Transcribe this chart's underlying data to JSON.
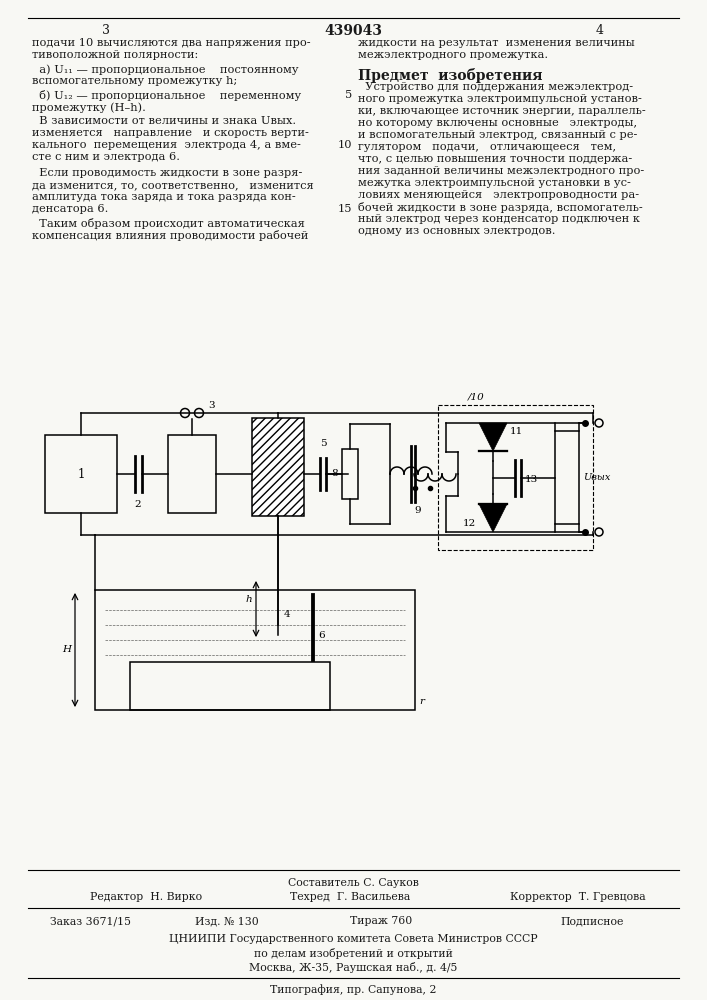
{
  "title": "439043",
  "page_left": "3",
  "page_right": "4",
  "background_color": "#f8f8f4",
  "text_color": "#1a1a1a",
  "footer": {
    "составитель": "Составитель С. Сауков",
    "редактор": "Редактор  Н. Вирко",
    "техред": "Техред  Г. Васильева",
    "корректор": "Корректор  Т. Гревцова",
    "заказ": "Заказ 3671/15",
    "изд": "Изд. № 130",
    "тираж": "Тираж 760",
    "подписное": "Подписное",
    "цниипи": "ЦНИИПИ Государственного комитета Совета Министров СССР",
    "поделам": "по делам изобретений и открытий",
    "москва": "Москва, Ж-35, Раушская наб., д. 4/5",
    "типография": "Типография, пр. Сапунова, 2"
  }
}
